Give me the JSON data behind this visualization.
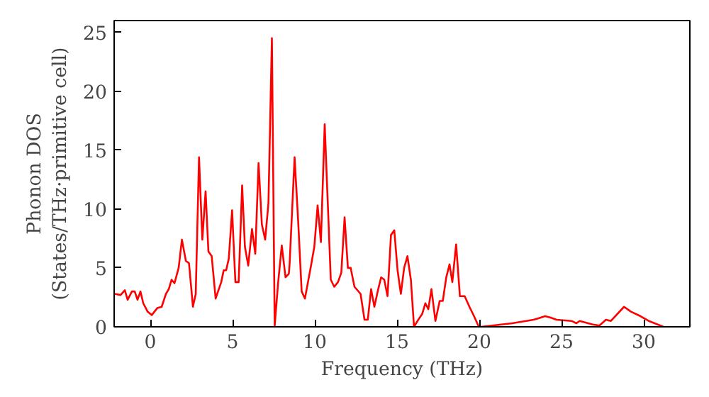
{
  "chart_data": {
    "type": "line",
    "xlabel": "Frequency (THz)",
    "ylabel": "Phonon DOS\n(States/THz·primitive cell)",
    "xlim": [
      -2.2,
      32.8
    ],
    "ylim": [
      0,
      26
    ],
    "xticks": [
      0,
      5,
      10,
      15,
      20,
      25,
      30
    ],
    "yticks": [
      0,
      5,
      10,
      15,
      20,
      25
    ],
    "grid": false,
    "series": [
      {
        "color": "#ff0000",
        "x": [
          -2.16,
          -1.81,
          -1.55,
          -1.38,
          -1.12,
          -0.95,
          -0.78,
          -0.6,
          -0.43,
          -0.17,
          0.09,
          0.43,
          0.69,
          0.95,
          1.12,
          1.29,
          1.47,
          1.72,
          1.92,
          2.16,
          2.35,
          2.59,
          2.76,
          2.96,
          3.16,
          3.36,
          3.53,
          3.73,
          3.97,
          4.31,
          4.46,
          4.61,
          4.77,
          4.97,
          5.17,
          5.37,
          5.58,
          5.75,
          5.95,
          6.18,
          6.38,
          6.58,
          6.78,
          6.98,
          7.18,
          7.39,
          7.56,
          7.76,
          7.99,
          8.22,
          8.42,
          8.47,
          8.77,
          8.99,
          9.2,
          9.4,
          9.77,
          9.97,
          10.17,
          10.37,
          10.6,
          10.97,
          11.18,
          11.41,
          11.61,
          11.81,
          12.01,
          12.18,
          12.41,
          12.78,
          13.02,
          13.22,
          13.42,
          13.62,
          13.82,
          14.03,
          14.22,
          14.42,
          14.63,
          14.83,
          15.03,
          15.23,
          15.43,
          15.63,
          15.84,
          16.03,
          16.29,
          16.53,
          16.72,
          16.9,
          17.09,
          17.33,
          17.59,
          17.78,
          17.99,
          18.19,
          18.36,
          18.59,
          18.82,
          19.11,
          19.4,
          19.68,
          19.97,
          20.1,
          22.0,
          23.3,
          24.0,
          24.3,
          24.7,
          25.6,
          25.9,
          26.1,
          26.9,
          27.3,
          27.7,
          28.0,
          28.8,
          29.2,
          29.8,
          30.3,
          31.2
        ],
        "values": [
          2.8,
          2.7,
          3.1,
          2.3,
          3.0,
          3.0,
          2.3,
          3.0,
          2.0,
          1.3,
          1.0,
          1.6,
          1.7,
          2.8,
          3.2,
          4.0,
          3.7,
          5.0,
          7.4,
          5.6,
          5.4,
          1.7,
          2.8,
          14.4,
          7.4,
          11.5,
          6.4,
          6.0,
          2.4,
          3.8,
          4.8,
          4.8,
          5.8,
          9.9,
          3.8,
          3.8,
          12.0,
          6.8,
          5.2,
          8.3,
          6.2,
          13.9,
          8.7,
          7.4,
          10.5,
          24.5,
          0.1,
          3.6,
          6.9,
          4.2,
          4.5,
          5.4,
          14.4,
          8.9,
          3.0,
          2.4,
          5.2,
          6.8,
          10.3,
          7.2,
          17.2,
          4.0,
          3.4,
          3.8,
          4.6,
          9.3,
          5.0,
          5.0,
          3.4,
          2.8,
          0.6,
          0.6,
          3.2,
          1.7,
          3.0,
          4.2,
          4.0,
          2.6,
          7.8,
          8.2,
          4.8,
          2.8,
          5.0,
          6.0,
          4.0,
          0,
          0.6,
          1.1,
          2.0,
          1.5,
          3.2,
          0.5,
          2.2,
          2.2,
          4.2,
          5.3,
          3.8,
          7.0,
          2.6,
          2.6,
          1.7,
          0.9,
          0,
          0,
          0.3,
          0.6,
          0.9,
          0.8,
          0.6,
          0.5,
          0.3,
          0.5,
          0.2,
          0.1,
          0.6,
          0.5,
          1.7,
          1.3,
          0.9,
          0.5,
          0
        ]
      }
    ]
  }
}
